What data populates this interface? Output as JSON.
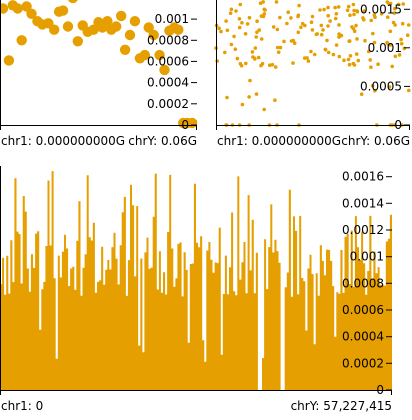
{
  "theme": {
    "accent": "#e69f00",
    "axis": "#000000",
    "background": "#ffffff"
  },
  "chart_data": [
    {
      "name": "top-left-scatter",
      "type": "scatter",
      "ylim": [
        0,
        0.00118
      ],
      "xlim": [
        0,
        1
      ],
      "yticks": [
        "0",
        "0.0002",
        "0.0004",
        "0.0006",
        "0.0008",
        "0.001"
      ],
      "ytick_values": [
        0,
        0.0002,
        0.0004,
        0.0006,
        0.0008,
        0.001
      ],
      "x_start_label": "chr1: 0.000000000G",
      "x_end_label": "chrY: 0.06G",
      "marker": "large",
      "points": [
        [
          0.015,
          0.0011
        ],
        [
          0.045,
          0.00061
        ],
        [
          0.065,
          0.00113
        ],
        [
          0.09,
          0.0011
        ],
        [
          0.11,
          0.0008
        ],
        [
          0.135,
          0.00112
        ],
        [
          0.16,
          0.00105
        ],
        [
          0.19,
          0.00098
        ],
        [
          0.215,
          0.00095
        ],
        [
          0.245,
          0.00096
        ],
        [
          0.275,
          0.0009
        ],
        [
          0.3,
          0.00107
        ],
        [
          0.32,
          0.00108
        ],
        [
          0.345,
          0.00093
        ],
        [
          0.37,
          0.0012
        ],
        [
          0.395,
          0.00079
        ],
        [
          0.42,
          0.00094
        ],
        [
          0.445,
          0.00088
        ],
        [
          0.475,
          0.0009
        ],
        [
          0.5,
          0.00097
        ],
        [
          0.52,
          0.00092
        ],
        [
          0.545,
          0.00098
        ],
        [
          0.565,
          0.0009
        ],
        [
          0.59,
          0.00093
        ],
        [
          0.615,
          0.00103
        ],
        [
          0.635,
          0.00071
        ],
        [
          0.66,
          0.00085
        ],
        [
          0.685,
          0.00098
        ],
        [
          0.71,
          0.00063
        ],
        [
          0.735,
          0.00066
        ],
        [
          0.755,
          0.00092
        ],
        [
          0.78,
          0.00085
        ],
        [
          0.81,
          0.00066
        ],
        [
          0.835,
          0.00052
        ],
        [
          0.86,
          0.00089
        ],
        [
          0.885,
          0.00092
        ],
        [
          0.905,
          0.0009
        ],
        [
          0.93,
          0.0
        ],
        [
          0.95,
          0.0
        ],
        [
          0.975,
          0.0
        ]
      ]
    },
    {
      "name": "top-right-scatter",
      "type": "scatter",
      "ylim": [
        0,
        0.00162
      ],
      "xlim": [
        0,
        1
      ],
      "yticks": [
        "0",
        "0.0005",
        "0.001",
        "0.0015"
      ],
      "ytick_values": [
        0,
        0.0005,
        0.001,
        0.0015
      ],
      "x_start_label": "chr1: 0.000000000G",
      "x_end_label": "chrY: 0.06G",
      "marker": "small",
      "points": []
    },
    {
      "name": "bottom-area",
      "type": "area",
      "ylim": [
        0,
        0.00168
      ],
      "xlim": [
        0,
        57227415
      ],
      "yticks": [
        "0",
        "0.0002",
        "0.0004",
        "0.0006",
        "0.0008",
        "0.001",
        "0.0012",
        "0.0014",
        "0.0016"
      ],
      "ytick_values": [
        0,
        0.0002,
        0.0004,
        0.0006,
        0.0008,
        0.001,
        0.0012,
        0.0014,
        0.0016
      ],
      "x_start_label": "chr1: 0",
      "x_end_label": "chrY: 57,227,415",
      "values": []
    }
  ]
}
